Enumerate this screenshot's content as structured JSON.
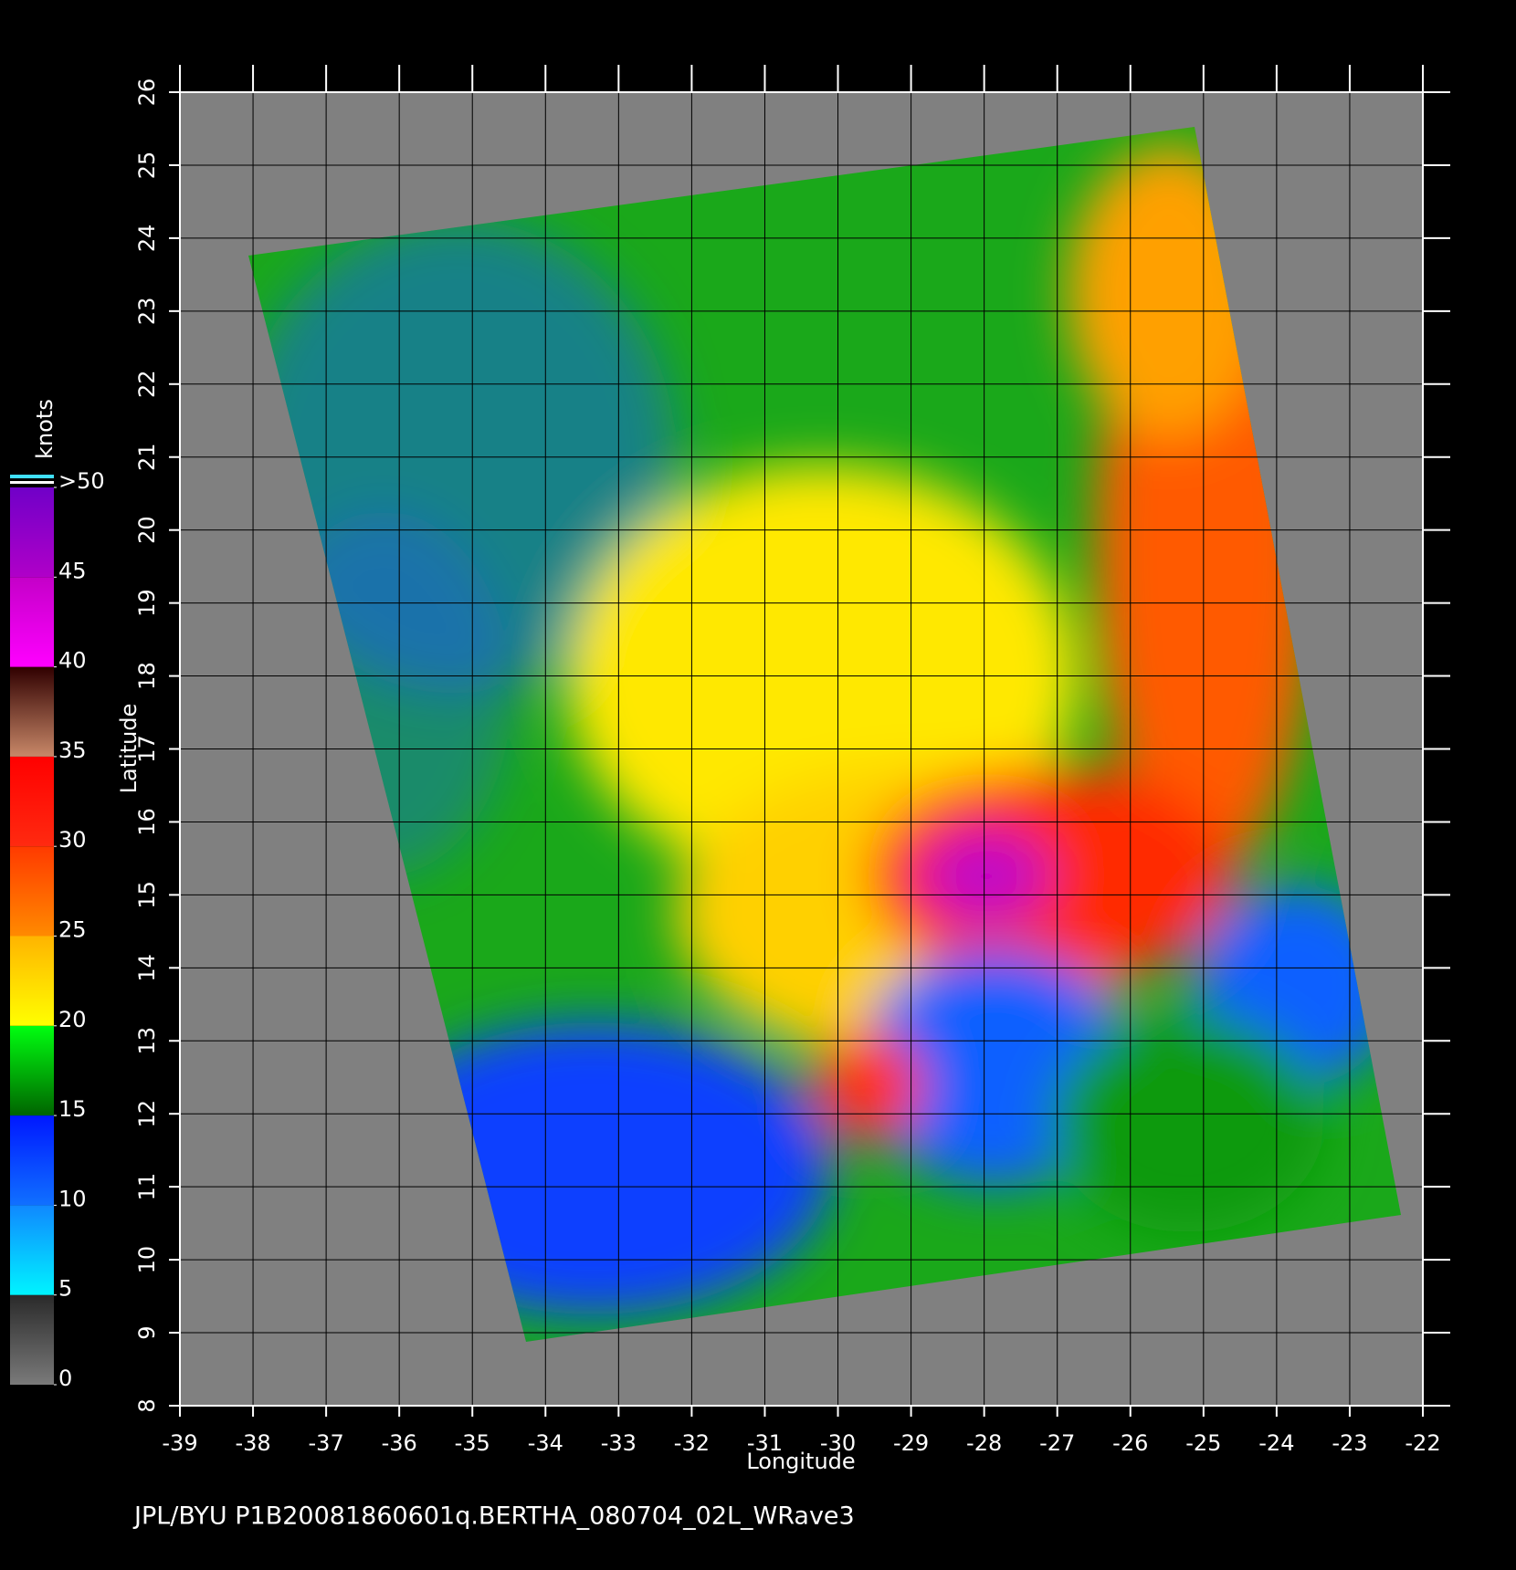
{
  "chart_data": {
    "type": "map",
    "xlabel": "Longitude",
    "ylabel": "Latitude",
    "xlim": [
      -39,
      -22
    ],
    "xticks": [
      -39,
      -38,
      -37,
      -36,
      -35,
      -34,
      -33,
      -32,
      -31,
      -30,
      -29,
      -28,
      -27,
      -26,
      -25,
      -24,
      -23,
      -22
    ],
    "ylim": [
      8,
      26
    ],
    "yticks": [
      8,
      9,
      10,
      11,
      12,
      13,
      14,
      15,
      16,
      17,
      18,
      19,
      20,
      21,
      22,
      23,
      24,
      25,
      26
    ],
    "grid": true,
    "colorbar": {
      "label": "knots",
      "lim": [
        0,
        50
      ],
      "ticks": [
        0,
        5,
        10,
        15,
        20,
        25,
        30,
        35,
        40,
        45,
        {
          "value": 50,
          "label": ">50"
        }
      ],
      "colors": [
        [
          "#7a7a7a",
          "#2a2a2a"
        ],
        [
          "#00f4ff",
          "#1088ff"
        ],
        [
          "#1070ff",
          "#0018ff"
        ],
        [
          "#006400",
          "#00ff10"
        ],
        [
          "#ffff00",
          "#ffb400"
        ],
        [
          "#ff8a00",
          "#ff3a00"
        ],
        [
          "#ff2a10",
          "#ff0000"
        ],
        [
          "#c88868",
          "#300000"
        ],
        [
          "#ff00ff",
          "#c400c8"
        ],
        [
          "#b000c8",
          "#7000c8"
        ]
      ]
    },
    "footer": "JPL/BYU  P1B20081860601q.BERTHA_080704_02L_WRave3"
  }
}
